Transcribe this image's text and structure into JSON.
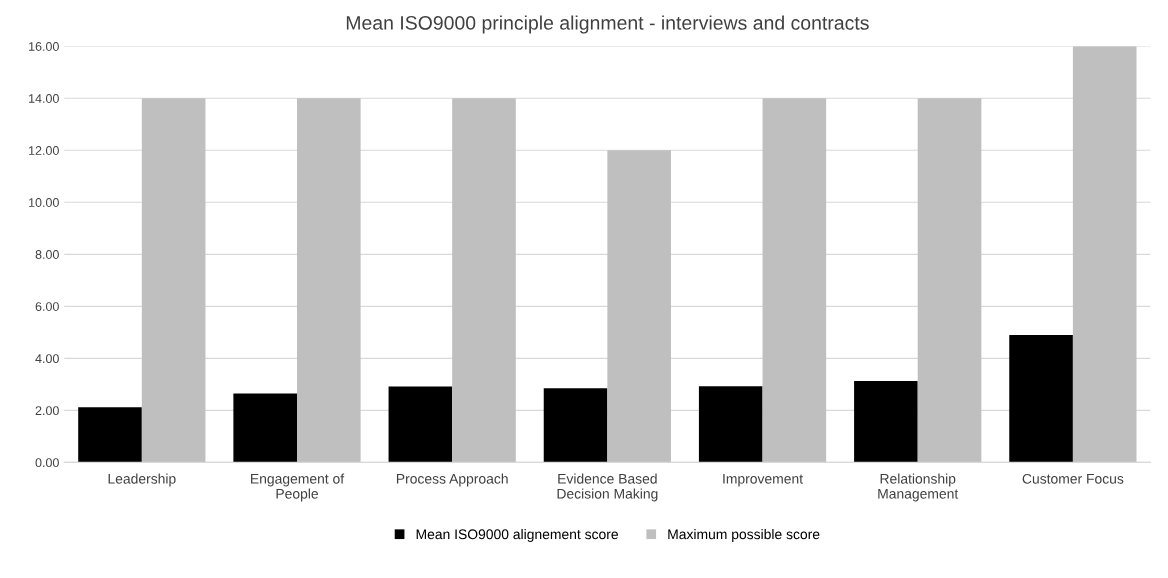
{
  "chart_data": {
    "type": "bar",
    "title": "Mean ISO9000 principle alignment - interviews and contracts",
    "categories": [
      "Leadership",
      "Engagement of\nPeople",
      "Process Approach",
      "Evidence Based\nDecision Making",
      "Improvement",
      "Relationship\nManagement",
      "Customer Focus"
    ],
    "series": [
      {
        "name": "Mean ISO9000 alignement score",
        "color": "#000000",
        "values": [
          2.12,
          2.65,
          2.92,
          2.85,
          2.93,
          3.13,
          4.9
        ]
      },
      {
        "name": "Maximum possible score",
        "color": "#bfbfbf",
        "values": [
          14,
          14,
          14,
          12,
          14,
          14,
          16
        ]
      }
    ],
    "ylim": [
      0,
      16
    ],
    "yticks": [
      {
        "value": 0,
        "label": "0.00"
      },
      {
        "value": 2,
        "label": "2.00"
      },
      {
        "value": 4,
        "label": "4.00"
      },
      {
        "value": 6,
        "label": "6.00"
      },
      {
        "value": 8,
        "label": "8.00"
      },
      {
        "value": 10,
        "label": "10.00"
      },
      {
        "value": 12,
        "label": "12.00"
      },
      {
        "value": 14,
        "label": "14.00"
      },
      {
        "value": 16,
        "label": "16.00"
      }
    ],
    "grid": "y",
    "legend": "bottom"
  }
}
